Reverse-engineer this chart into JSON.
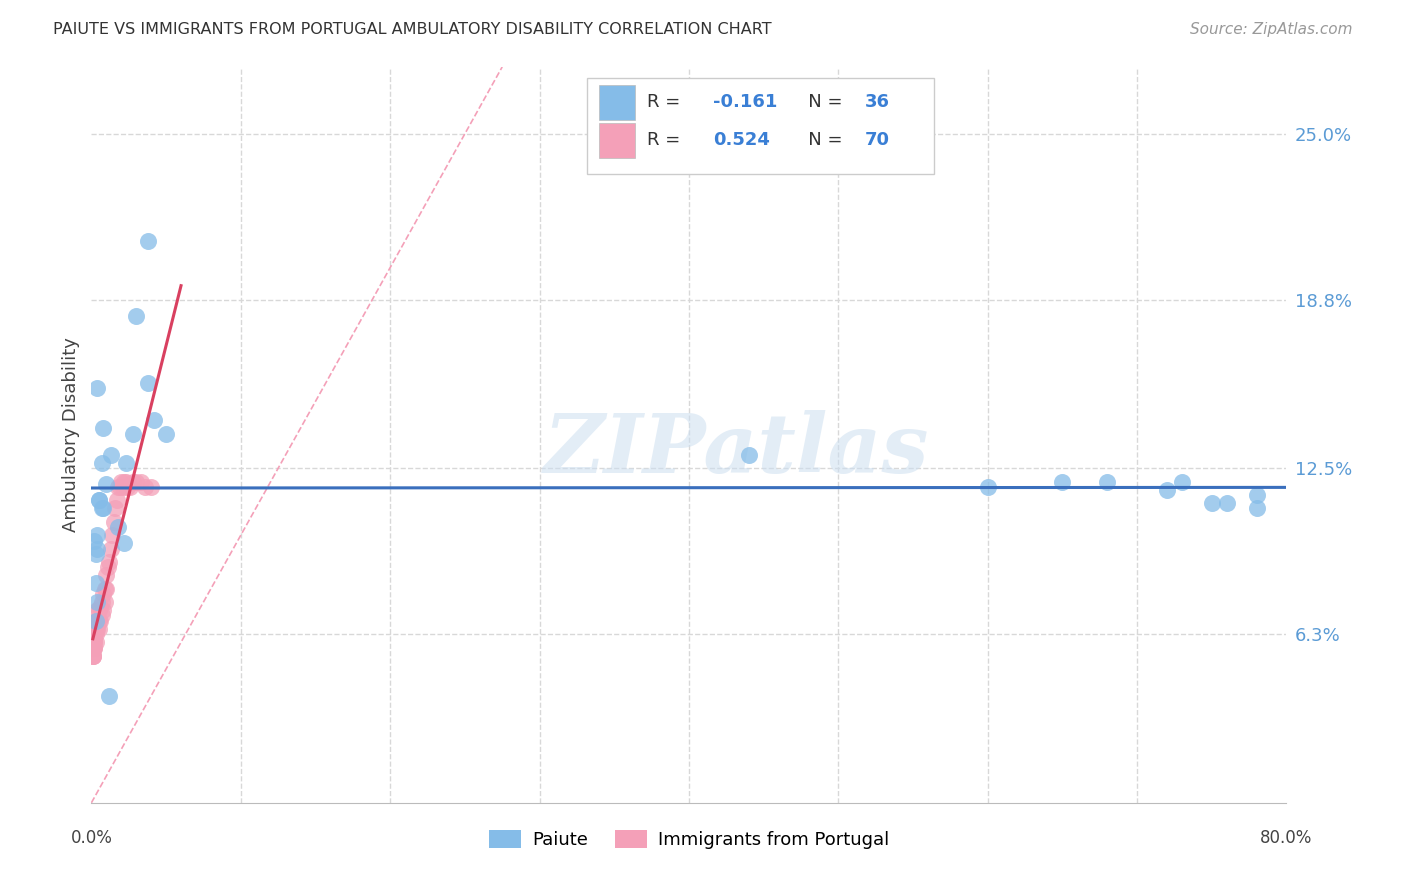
{
  "title": "PAIUTE VS IMMIGRANTS FROM PORTUGAL AMBULATORY DISABILITY CORRELATION CHART",
  "source": "Source: ZipAtlas.com",
  "ylabel": "Ambulatory Disability",
  "ytick_values": [
    0.063,
    0.125,
    0.188,
    0.25
  ],
  "ytick_labels": [
    "6.3%",
    "12.5%",
    "18.8%",
    "25.0%"
  ],
  "xlim": [
    0.0,
    0.8
  ],
  "ylim": [
    0.0,
    0.275
  ],
  "paiute_color": "#85bce8",
  "portugal_color": "#f4a0b8",
  "trendline_color_paiute": "#3a6fbd",
  "trendline_color_portugal": "#d94060",
  "diagonal_color": "#f4a0b8",
  "watermark": "ZIPatlas",
  "background_color": "#ffffff",
  "grid_color": "#d8d8d8",
  "paiute_x": [
    0.022,
    0.038,
    0.03,
    0.01,
    0.004,
    0.004,
    0.003,
    0.004,
    0.003,
    0.008,
    0.007,
    0.013,
    0.018,
    0.028,
    0.023,
    0.038,
    0.042,
    0.05,
    0.002,
    0.003,
    0.005,
    0.007,
    0.008,
    0.005,
    0.004,
    0.44,
    0.6,
    0.65,
    0.68,
    0.72,
    0.73,
    0.75,
    0.76,
    0.78,
    0.78,
    0.012
  ],
  "paiute_y": [
    0.097,
    0.21,
    0.182,
    0.119,
    0.1,
    0.095,
    0.082,
    0.075,
    0.068,
    0.11,
    0.11,
    0.13,
    0.103,
    0.138,
    0.127,
    0.157,
    0.143,
    0.138,
    0.098,
    0.093,
    0.113,
    0.127,
    0.14,
    0.113,
    0.155,
    0.13,
    0.118,
    0.12,
    0.12,
    0.117,
    0.12,
    0.112,
    0.112,
    0.115,
    0.11,
    0.04
  ],
  "portugal_x": [
    0.001,
    0.001,
    0.001,
    0.001,
    0.001,
    0.001,
    0.001,
    0.001,
    0.001,
    0.001,
    0.001,
    0.001,
    0.001,
    0.001,
    0.001,
    0.001,
    0.001,
    0.001,
    0.001,
    0.001,
    0.002,
    0.002,
    0.002,
    0.002,
    0.002,
    0.002,
    0.002,
    0.002,
    0.002,
    0.003,
    0.003,
    0.003,
    0.003,
    0.004,
    0.004,
    0.004,
    0.005,
    0.005,
    0.005,
    0.006,
    0.006,
    0.007,
    0.007,
    0.008,
    0.008,
    0.009,
    0.009,
    0.01,
    0.01,
    0.011,
    0.012,
    0.013,
    0.014,
    0.015,
    0.016,
    0.017,
    0.018,
    0.019,
    0.02,
    0.021,
    0.022,
    0.023,
    0.024,
    0.026,
    0.028,
    0.03,
    0.033,
    0.036,
    0.04
  ],
  "portugal_y": [
    0.058,
    0.06,
    0.062,
    0.055,
    0.06,
    0.058,
    0.062,
    0.055,
    0.058,
    0.06,
    0.062,
    0.058,
    0.06,
    0.062,
    0.06,
    0.058,
    0.062,
    0.06,
    0.055,
    0.058,
    0.06,
    0.062,
    0.058,
    0.065,
    0.06,
    0.063,
    0.058,
    0.065,
    0.062,
    0.06,
    0.063,
    0.065,
    0.068,
    0.065,
    0.068,
    0.072,
    0.065,
    0.068,
    0.072,
    0.068,
    0.073,
    0.07,
    0.075,
    0.072,
    0.078,
    0.075,
    0.08,
    0.08,
    0.085,
    0.088,
    0.09,
    0.095,
    0.1,
    0.105,
    0.11,
    0.113,
    0.118,
    0.118,
    0.12,
    0.118,
    0.12,
    0.12,
    0.118,
    0.118,
    0.12,
    0.12,
    0.12,
    0.118,
    0.118
  ]
}
